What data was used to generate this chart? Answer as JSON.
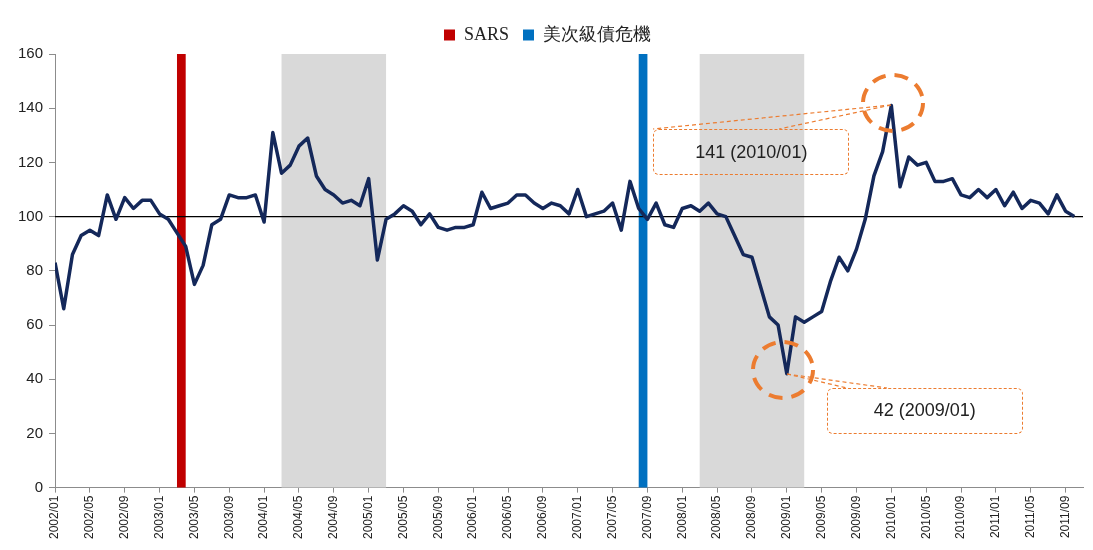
{
  "chart_data": {
    "type": "line",
    "x": [
      "2002-01",
      "2002-02",
      "2002-03",
      "2002-04",
      "2002-05",
      "2002-06",
      "2002-07",
      "2002-08",
      "2002-09",
      "2002-10",
      "2002-11",
      "2002-12",
      "2003-01",
      "2003-02",
      "2003-03",
      "2003-04",
      "2003-05",
      "2003-06",
      "2003-07",
      "2003-08",
      "2003-09",
      "2003-10",
      "2003-11",
      "2003-12",
      "2004-01",
      "2004-02",
      "2004-03",
      "2004-04",
      "2004-05",
      "2004-06",
      "2004-07",
      "2004-08",
      "2004-09",
      "2004-10",
      "2004-11",
      "2004-12",
      "2005-01",
      "2005-02",
      "2005-03",
      "2005-04",
      "2005-05",
      "2005-06",
      "2005-07",
      "2005-08",
      "2005-09",
      "2005-10",
      "2005-11",
      "2005-12",
      "2006-01",
      "2006-02",
      "2006-03",
      "2006-04",
      "2006-05",
      "2006-06",
      "2006-07",
      "2006-08",
      "2006-09",
      "2006-10",
      "2006-11",
      "2006-12",
      "2007-01",
      "2007-02",
      "2007-03",
      "2007-04",
      "2007-05",
      "2007-06",
      "2007-07",
      "2007-08",
      "2007-09",
      "2007-10",
      "2007-11",
      "2007-12",
      "2008-01",
      "2008-02",
      "2008-03",
      "2008-04",
      "2008-05",
      "2008-06",
      "2008-07",
      "2008-08",
      "2008-09",
      "2008-10",
      "2008-11",
      "2008-12",
      "2009-01",
      "2009-02",
      "2009-03",
      "2009-04",
      "2009-05",
      "2009-06",
      "2009-07",
      "2009-08",
      "2009-09",
      "2009-10",
      "2009-11",
      "2009-12",
      "2010-01",
      "2010-02",
      "2010-03",
      "2010-04",
      "2010-05",
      "2010-06",
      "2010-07",
      "2010-08",
      "2010-09",
      "2010-10",
      "2010-11",
      "2010-12",
      "2011-01",
      "2011-02",
      "2011-03",
      "2011-04",
      "2011-05",
      "2011-06",
      "2011-07",
      "2011-08",
      "2011-09",
      "2011-10"
    ],
    "series": [
      {
        "color": "#14285a",
        "values": [
          83,
          66,
          86,
          93,
          95,
          93,
          108,
          99,
          107,
          103,
          106,
          106,
          101,
          99,
          94,
          89,
          75,
          82,
          97,
          99,
          108,
          107,
          107,
          108,
          98,
          131,
          116,
          119,
          126,
          129,
          115,
          110,
          108,
          105,
          106,
          104,
          114,
          84,
          99,
          101,
          104,
          102,
          97,
          101,
          96,
          95,
          96,
          96,
          97,
          109,
          103,
          104,
          105,
          108,
          108,
          105,
          103,
          105,
          104,
          101,
          110,
          100,
          101,
          102,
          105,
          95,
          113,
          103,
          99,
          105,
          97,
          96,
          103,
          104,
          102,
          105,
          101,
          100,
          93,
          86,
          85,
          74,
          63,
          60,
          42,
          63,
          61,
          63,
          65,
          76,
          85,
          80,
          88,
          99,
          115,
          124,
          141,
          111,
          122,
          119,
          120,
          113,
          113,
          114,
          108,
          107,
          110,
          107,
          110,
          104,
          109,
          103,
          106,
          105,
          101,
          108,
          102,
          100
        ]
      }
    ],
    "xlim": [
      "2002-01",
      "2011-11"
    ],
    "xticks": [
      {
        "value": "2002-01",
        "label": "2002/01"
      },
      {
        "value": "2002-05",
        "label": "2002/05"
      },
      {
        "value": "2002-09",
        "label": "2002/09"
      },
      {
        "value": "2003-01",
        "label": "2003/01"
      },
      {
        "value": "2003-05",
        "label": "2003/05"
      },
      {
        "value": "2003-09",
        "label": "2003/09"
      },
      {
        "value": "2004-01",
        "label": "2004/01"
      },
      {
        "value": "2004-05",
        "label": "2004/05"
      },
      {
        "value": "2004-09",
        "label": "2004/09"
      },
      {
        "value": "2005-01",
        "label": "2005/01"
      },
      {
        "value": "2005-05",
        "label": "2005/05"
      },
      {
        "value": "2005-09",
        "label": "2005/09"
      },
      {
        "value": "2006-01",
        "label": "2006/01"
      },
      {
        "value": "2006-05",
        "label": "2006/05"
      },
      {
        "value": "2006-09",
        "label": "2006/09"
      },
      {
        "value": "2007-01",
        "label": "2007/01"
      },
      {
        "value": "2007-05",
        "label": "2007/05"
      },
      {
        "value": "2007-09",
        "label": "2007/09"
      },
      {
        "value": "2008-01",
        "label": "2008/01"
      },
      {
        "value": "2008-05",
        "label": "2008/05"
      },
      {
        "value": "2008-09",
        "label": "2008/09"
      },
      {
        "value": "2009-01",
        "label": "2009/01"
      },
      {
        "value": "2009-05",
        "label": "2009/05"
      },
      {
        "value": "2009-09",
        "label": "2009/09"
      },
      {
        "value": "2010-01",
        "label": "2010/01"
      },
      {
        "value": "2010-05",
        "label": "2010/05"
      },
      {
        "value": "2010-09",
        "label": "2010/09"
      },
      {
        "value": "2011-01",
        "label": "2011/01"
      },
      {
        "value": "2011-05",
        "label": "2011/05"
      },
      {
        "value": "2011-09",
        "label": "2011/09"
      }
    ],
    "ylim": [
      0,
      160
    ],
    "yticks": [
      0,
      20,
      40,
      60,
      80,
      100,
      120,
      140,
      160
    ],
    "grid": false,
    "legend": "top",
    "marker": "none",
    "bands": [
      {
        "axis": "x",
        "from": "2004-03",
        "to": "2005-03",
        "color": "#d9d9d9"
      },
      {
        "axis": "x",
        "from": "2008-03",
        "to": "2009-03",
        "color": "#d9d9d9"
      },
      {
        "axis": "x",
        "from": "2003-03",
        "to": "2003-04",
        "label": "SARS",
        "color": "#c00000"
      },
      {
        "axis": "x",
        "from": "2007-08",
        "to": "2007-09",
        "label": "美次級債危機",
        "color": "#0070c0"
      }
    ],
    "ref_lines": [
      {
        "axis": "y",
        "value": 100,
        "color": "#000000"
      }
    ],
    "annotations": [
      {
        "text": "141 (2010/01)",
        "x": "2010-01",
        "y": 141
      },
      {
        "text": "42 (2009/01)",
        "x": "2009-01",
        "y": 42
      }
    ]
  }
}
